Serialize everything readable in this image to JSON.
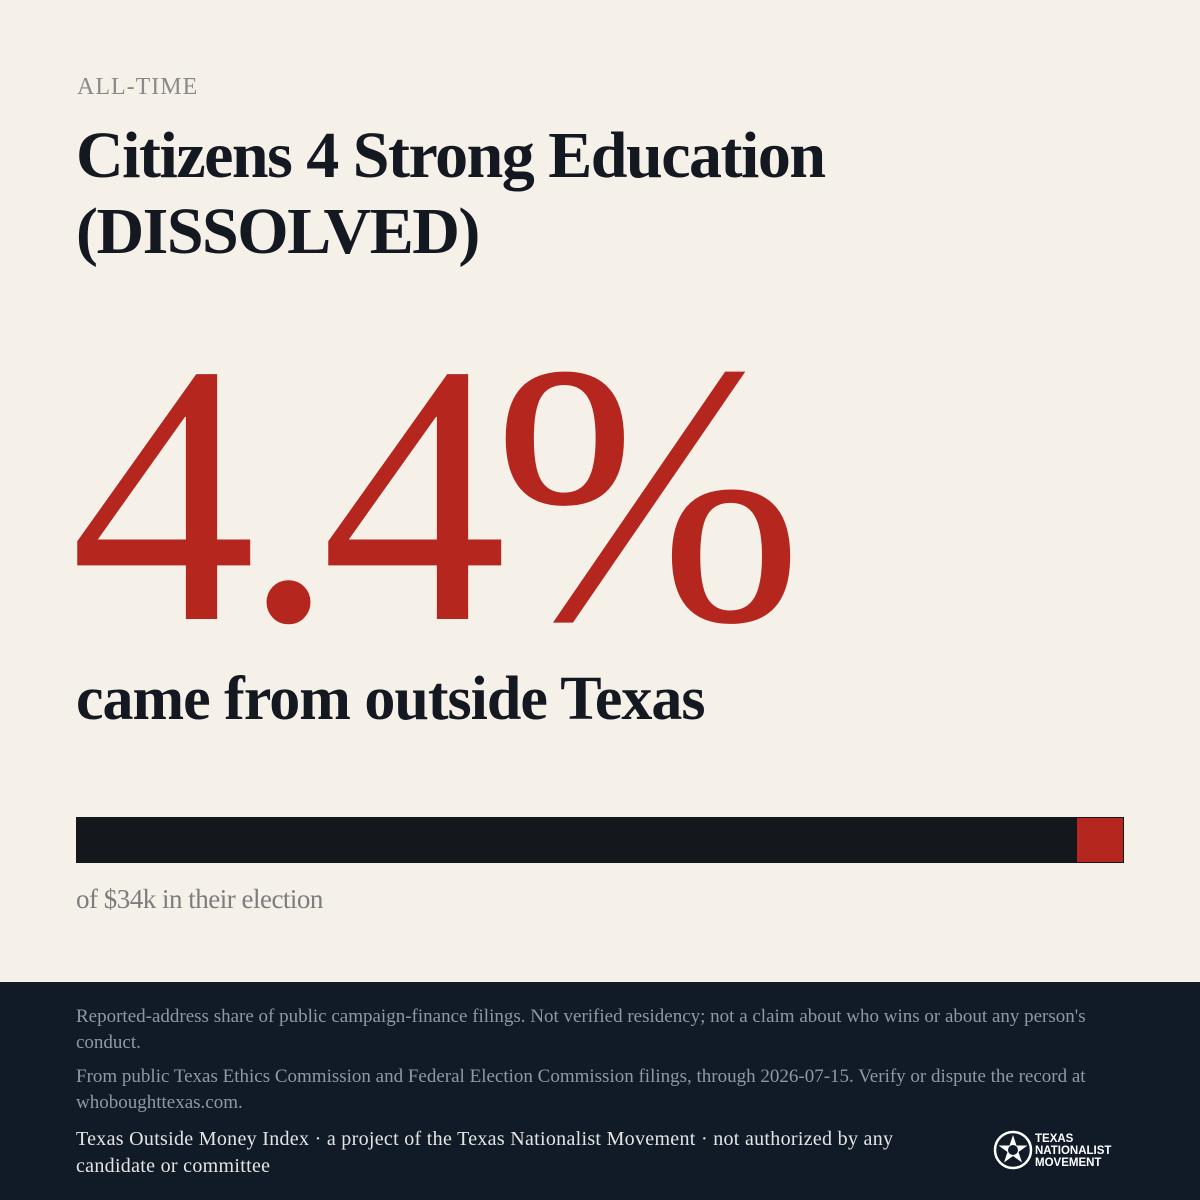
{
  "header": {
    "eyebrow": "ALL-TIME",
    "title": "Citizens 4 Strong Education (DISSOLVED)"
  },
  "stat": {
    "value": 4.4,
    "label": "4.4%"
  },
  "tagline": "came from outside Texas",
  "caption": "of $34k in their election",
  "footer": {
    "notes": [
      "Reported-address share of public campaign-finance filings. Not verified residency; not a claim about who wins or about any person's conduct.",
      "From public Texas Ethics Commission and Federal Election Commission filings, through 2026-07-15. Verify or dispute the record at whoboughttexas.com."
    ],
    "credit": "Texas Outside Money Index · a project of the Texas Nationalist Movement · not authorized by any candidate or committee",
    "logo_text": [
      "TEXAS",
      "NATIONALIST",
      "MOVEMENT"
    ]
  }
}
